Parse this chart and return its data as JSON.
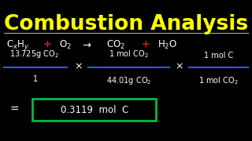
{
  "bg_color": "#000000",
  "title": "Combustion Analysis",
  "title_color": "#ffff00",
  "title_fontsize": 19,
  "separator_color": "#aaaaaa",
  "text_color": "#ffffff",
  "red_color": "#cc2222",
  "green_color": "#00bb44",
  "blue_line_color": "#3355ff",
  "cross": "×",
  "result_text": "0.3119  mol  C",
  "equals": "="
}
